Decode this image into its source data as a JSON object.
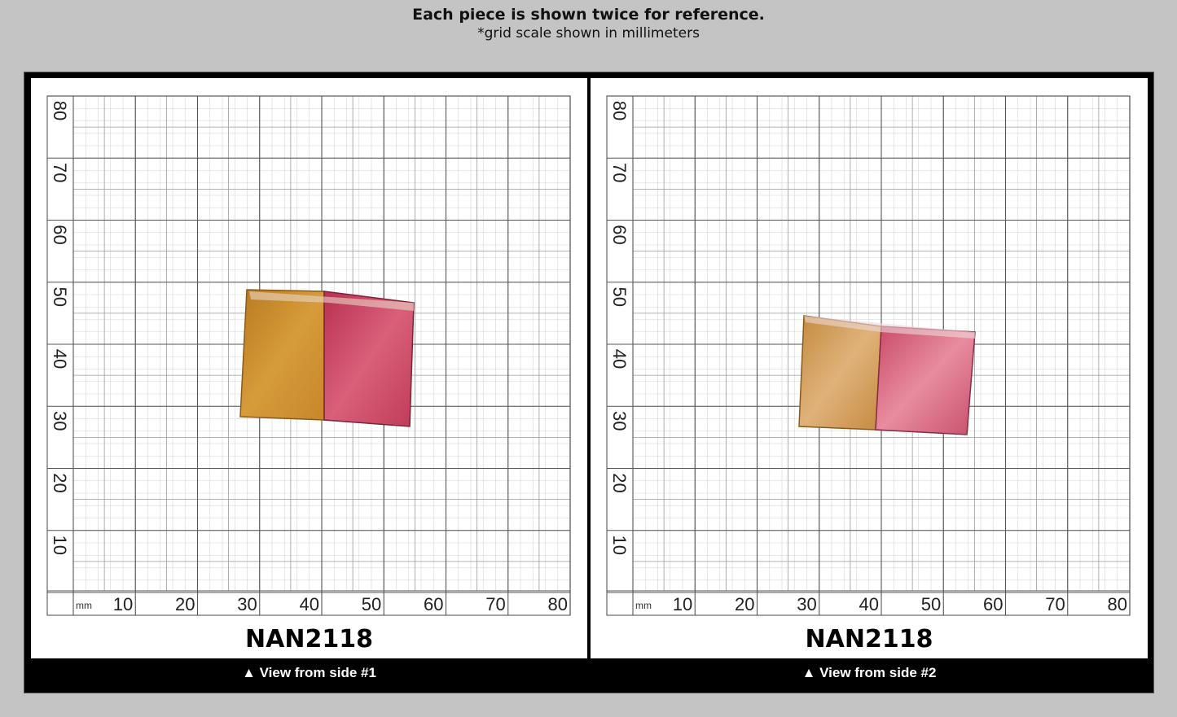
{
  "header": {
    "title": "Each piece is shown twice for reference.",
    "subtitle": "*grid scale shown in millimeters"
  },
  "panels": [
    {
      "code": "NAN2118",
      "caption": "▲ View from side #1",
      "unit_label": "mm",
      "x_ticks": [
        "10",
        "20",
        "30",
        "40",
        "50",
        "60",
        "70",
        "80"
      ],
      "y_ticks": [
        "10",
        "20",
        "30",
        "40",
        "50",
        "60",
        "70",
        "80"
      ],
      "specimen_colors": {
        "amber": "#c98a2a",
        "pink": "#c8405a"
      }
    },
    {
      "code": "NAN2118",
      "caption": "▲ View from side #2",
      "unit_label": "mm",
      "x_ticks": [
        "10",
        "20",
        "30",
        "40",
        "50",
        "60",
        "70",
        "80"
      ],
      "y_ticks": [
        "10",
        "20",
        "30",
        "40",
        "50",
        "60",
        "70",
        "80"
      ],
      "specimen_colors": {
        "amber": "#c9914a",
        "pink": "#cf5a72"
      }
    }
  ]
}
